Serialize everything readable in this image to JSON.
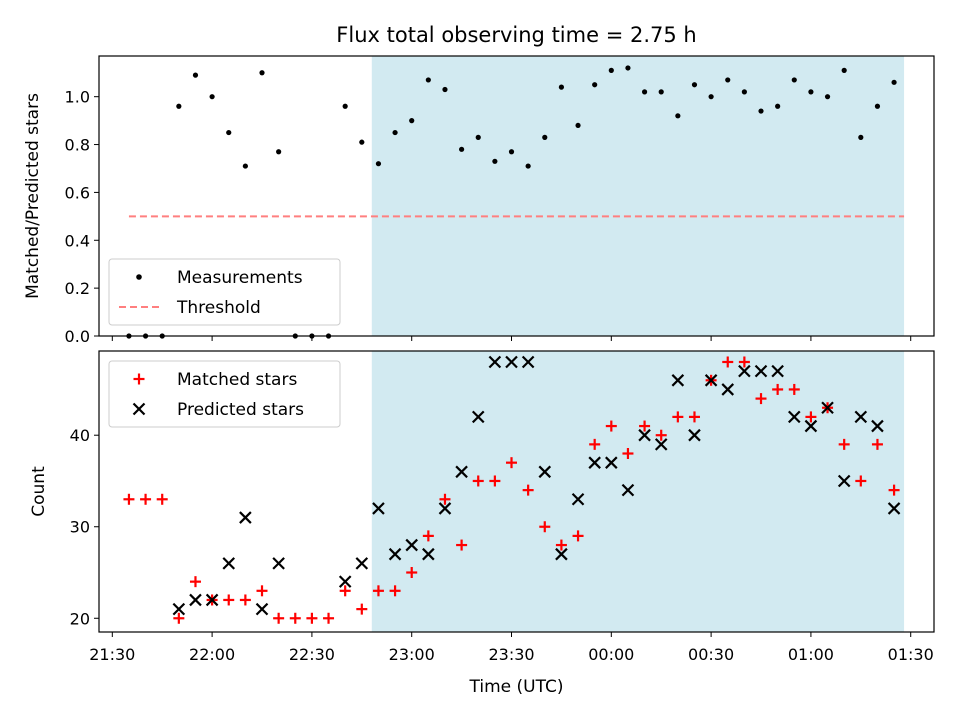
{
  "chart_data": [
    {
      "type": "scatter",
      "title": "Flux total observing time = 2.75 h",
      "xlabel": "",
      "ylabel": "Matched/Predicted stars",
      "ylim": [
        0,
        1.17
      ],
      "yticks": [
        "0.0",
        "0.2",
        "0.4",
        "0.6",
        "0.8",
        "1.0"
      ],
      "xrange_utc": [
        "21:26",
        "01:37"
      ],
      "shaded_region_utc": [
        "22:48",
        "01:28"
      ],
      "shaded_color": "#add8e6",
      "legend": {
        "placement": "lower-left",
        "entries": [
          {
            "label": "Measurements",
            "marker": "dot",
            "color": "#000000"
          },
          {
            "label": "Threshold",
            "marker": "dashed-line",
            "color": "#ff7f7f"
          }
        ]
      },
      "threshold": {
        "value": 0.5,
        "x_start": "21:35",
        "x_end": "01:28",
        "color": "#ff7f7f"
      },
      "series": [
        {
          "name": "Measurements",
          "color": "#000000",
          "points": [
            [
              "21:35",
              0.0
            ],
            [
              "21:40",
              0.0
            ],
            [
              "21:45",
              0.0
            ],
            [
              "21:50",
              0.96
            ],
            [
              "21:55",
              1.09
            ],
            [
              "22:00",
              1.0
            ],
            [
              "22:05",
              0.85
            ],
            [
              "22:10",
              0.71
            ],
            [
              "22:15",
              1.1
            ],
            [
              "22:20",
              0.77
            ],
            [
              "22:25",
              0.0
            ],
            [
              "22:30",
              0.0
            ],
            [
              "22:35",
              0.0
            ],
            [
              "22:40",
              0.96
            ],
            [
              "22:45",
              0.81
            ],
            [
              "22:50",
              0.72
            ],
            [
              "22:55",
              0.85
            ],
            [
              "23:00",
              0.9
            ],
            [
              "23:05",
              1.07
            ],
            [
              "23:10",
              1.03
            ],
            [
              "23:15",
              0.78
            ],
            [
              "23:20",
              0.83
            ],
            [
              "23:25",
              0.73
            ],
            [
              "23:30",
              0.77
            ],
            [
              "23:35",
              0.71
            ],
            [
              "23:40",
              0.83
            ],
            [
              "23:45",
              1.04
            ],
            [
              "23:50",
              0.88
            ],
            [
              "23:55",
              1.05
            ],
            [
              "00:00",
              1.11
            ],
            [
              "00:05",
              1.12
            ],
            [
              "00:10",
              1.02
            ],
            [
              "00:15",
              1.02
            ],
            [
              "00:20",
              0.92
            ],
            [
              "00:25",
              1.05
            ],
            [
              "00:30",
              1.0
            ],
            [
              "00:35",
              1.07
            ],
            [
              "00:40",
              1.02
            ],
            [
              "00:45",
              0.94
            ],
            [
              "00:50",
              0.96
            ],
            [
              "00:55",
              1.07
            ],
            [
              "01:00",
              1.02
            ],
            [
              "01:05",
              1.0
            ],
            [
              "01:10",
              1.11
            ],
            [
              "01:15",
              0.83
            ],
            [
              "01:20",
              0.96
            ],
            [
              "01:25",
              1.06
            ]
          ]
        }
      ]
    },
    {
      "type": "scatter",
      "title": "",
      "xlabel": "Time (UTC)",
      "ylabel": "Count",
      "ylim": [
        18.5,
        49.2
      ],
      "yticks": [
        "20",
        "30",
        "40"
      ],
      "xrange_utc": [
        "21:26",
        "01:37"
      ],
      "xticks": [
        "21:30",
        "22:00",
        "22:30",
        "23:00",
        "23:30",
        "00:00",
        "00:30",
        "01:00",
        "01:30"
      ],
      "shaded_region_utc": [
        "22:48",
        "01:28"
      ],
      "shaded_color": "#add8e6",
      "legend": {
        "placement": "top-left",
        "entries": [
          {
            "label": "Matched stars",
            "marker": "plus",
            "color": "#ff0000"
          },
          {
            "label": "Predicted stars",
            "marker": "x",
            "color": "#000000"
          }
        ]
      },
      "series": [
        {
          "name": "Matched stars",
          "marker": "plus",
          "color": "#ff0000",
          "points": [
            [
              "21:35",
              33
            ],
            [
              "21:40",
              33
            ],
            [
              "21:45",
              33
            ],
            [
              "21:50",
              20
            ],
            [
              "21:55",
              24
            ],
            [
              "22:00",
              22
            ],
            [
              "22:05",
              22
            ],
            [
              "22:10",
              22
            ],
            [
              "22:15",
              23
            ],
            [
              "22:20",
              20
            ],
            [
              "22:25",
              20
            ],
            [
              "22:30",
              20
            ],
            [
              "22:35",
              20
            ],
            [
              "22:40",
              23
            ],
            [
              "22:45",
              21
            ],
            [
              "22:50",
              23
            ],
            [
              "22:55",
              23
            ],
            [
              "23:00",
              25
            ],
            [
              "23:05",
              29
            ],
            [
              "23:10",
              33
            ],
            [
              "23:15",
              28
            ],
            [
              "23:20",
              35
            ],
            [
              "23:25",
              35
            ],
            [
              "23:30",
              37
            ],
            [
              "23:35",
              34
            ],
            [
              "23:40",
              30
            ],
            [
              "23:45",
              28
            ],
            [
              "23:50",
              29
            ],
            [
              "23:55",
              39
            ],
            [
              "00:00",
              41
            ],
            [
              "00:05",
              38
            ],
            [
              "00:10",
              41
            ],
            [
              "00:15",
              40
            ],
            [
              "00:20",
              42
            ],
            [
              "00:25",
              42
            ],
            [
              "00:30",
              46
            ],
            [
              "00:35",
              48
            ],
            [
              "00:40",
              48
            ],
            [
              "00:45",
              44
            ],
            [
              "00:50",
              45
            ],
            [
              "00:55",
              45
            ],
            [
              "01:00",
              42
            ],
            [
              "01:05",
              43
            ],
            [
              "01:10",
              39
            ],
            [
              "01:15",
              35
            ],
            [
              "01:20",
              39
            ],
            [
              "01:25",
              34
            ]
          ]
        },
        {
          "name": "Predicted stars",
          "marker": "x",
          "color": "#000000",
          "points": [
            [
              "21:50",
              21
            ],
            [
              "21:55",
              22
            ],
            [
              "22:00",
              22
            ],
            [
              "22:05",
              26
            ],
            [
              "22:10",
              31
            ],
            [
              "22:15",
              21
            ],
            [
              "22:20",
              26
            ],
            [
              "22:40",
              24
            ],
            [
              "22:45",
              26
            ],
            [
              "22:50",
              32
            ],
            [
              "22:55",
              27
            ],
            [
              "23:00",
              28
            ],
            [
              "23:05",
              27
            ],
            [
              "23:10",
              32
            ],
            [
              "23:15",
              36
            ],
            [
              "23:20",
              42
            ],
            [
              "23:25",
              48
            ],
            [
              "23:30",
              48
            ],
            [
              "23:35",
              48
            ],
            [
              "23:40",
              36
            ],
            [
              "23:45",
              27
            ],
            [
              "23:50",
              33
            ],
            [
              "23:55",
              37
            ],
            [
              "00:00",
              37
            ],
            [
              "00:05",
              34
            ],
            [
              "00:10",
              40
            ],
            [
              "00:15",
              39
            ],
            [
              "00:20",
              46
            ],
            [
              "00:25",
              40
            ],
            [
              "00:30",
              46
            ],
            [
              "00:35",
              45
            ],
            [
              "00:40",
              47
            ],
            [
              "00:45",
              47
            ],
            [
              "00:50",
              47
            ],
            [
              "00:55",
              42
            ],
            [
              "01:00",
              41
            ],
            [
              "01:05",
              43
            ],
            [
              "01:10",
              35
            ],
            [
              "01:15",
              42
            ],
            [
              "01:20",
              41
            ],
            [
              "01:25",
              32
            ]
          ]
        }
      ]
    }
  ]
}
